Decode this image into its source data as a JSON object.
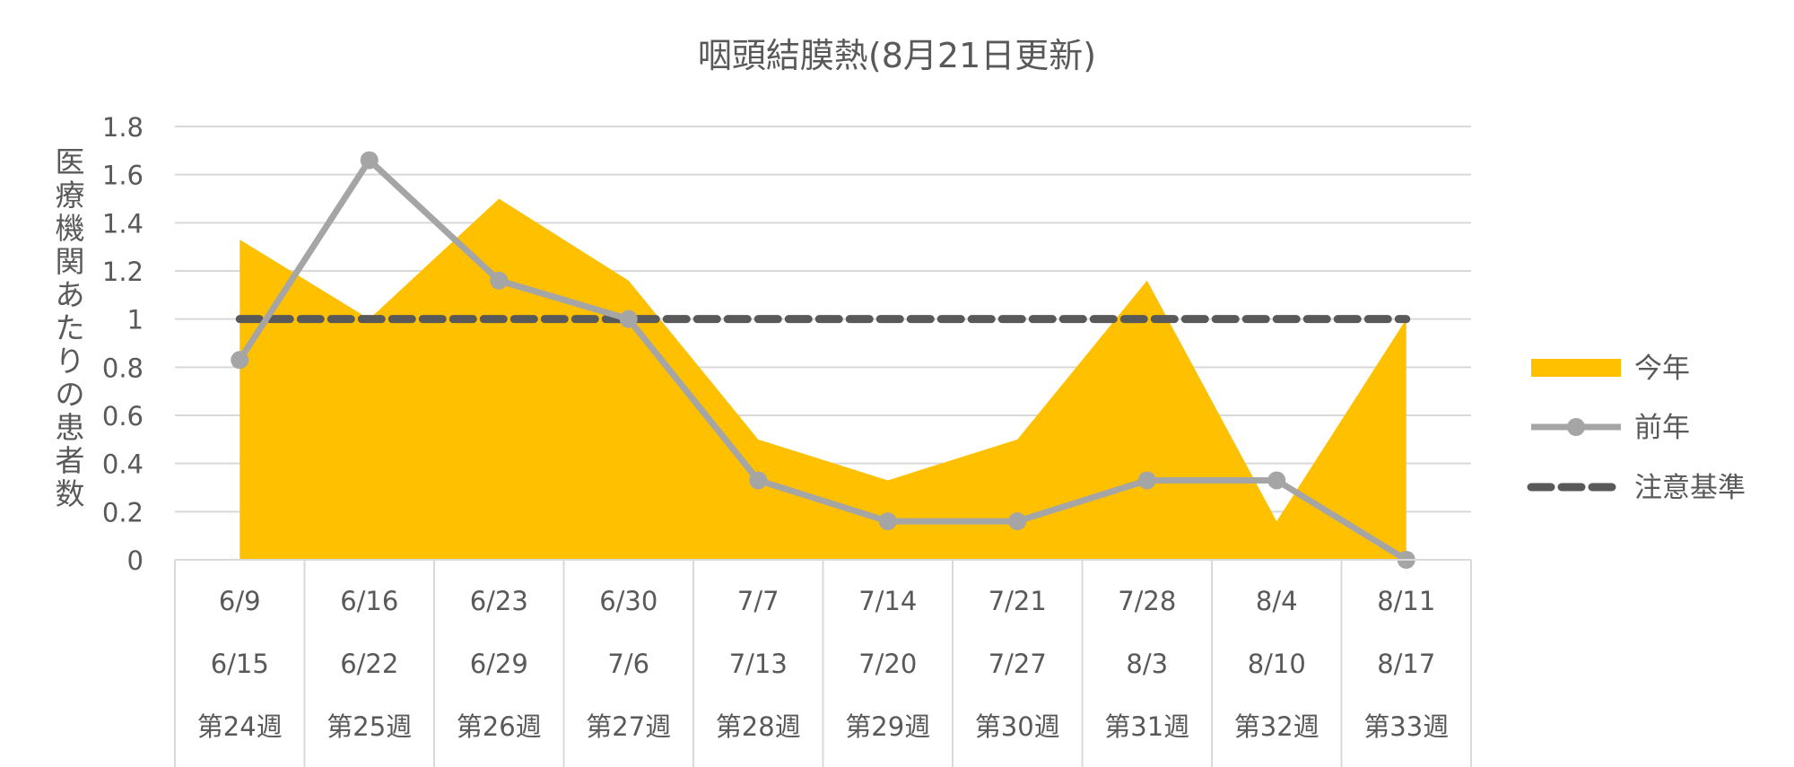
{
  "chart_data": {
    "type": "area",
    "title": "咽頭結膜熱(8月21日更新)",
    "ylabel": "医療機関あたりの患者数",
    "xlabel": "",
    "ylim": [
      0,
      1.8
    ],
    "yticks": [
      "0",
      "0.2",
      "0.4",
      "0.6",
      "0.8",
      "1",
      "1.2",
      "1.4",
      "1.6",
      "1.8"
    ],
    "ytick_values": [
      0,
      0.2,
      0.4,
      0.6,
      0.8,
      1,
      1.2,
      1.4,
      1.6,
      1.8
    ],
    "grid": true,
    "legend_position": "right",
    "categories": [
      {
        "start": "6/9",
        "end": "6/15",
        "week": "第24週"
      },
      {
        "start": "6/16",
        "end": "6/22",
        "week": "第25週"
      },
      {
        "start": "6/23",
        "end": "6/29",
        "week": "第26週"
      },
      {
        "start": "6/30",
        "end": "7/6",
        "week": "第27週"
      },
      {
        "start": "7/7",
        "end": "7/13",
        "week": "第28週"
      },
      {
        "start": "7/14",
        "end": "7/20",
        "week": "第29週"
      },
      {
        "start": "7/21",
        "end": "7/27",
        "week": "第30週"
      },
      {
        "start": "7/28",
        "end": "8/3",
        "week": "第31週"
      },
      {
        "start": "8/4",
        "end": "8/10",
        "week": "第32週"
      },
      {
        "start": "8/11",
        "end": "8/17",
        "week": "第33週"
      }
    ],
    "series": [
      {
        "name": "今年",
        "kind": "area",
        "color": "#FFC000",
        "values": [
          1.33,
          1.0,
          1.5,
          1.16,
          0.5,
          0.33,
          0.5,
          1.16,
          0.16,
          1.0
        ]
      },
      {
        "name": "前年",
        "kind": "line-marker",
        "color": "#A5A5A5",
        "values": [
          0.83,
          1.66,
          1.16,
          1.0,
          0.33,
          0.16,
          0.16,
          0.33,
          0.33,
          0.0
        ]
      },
      {
        "name": "注意基準",
        "kind": "dashed-line",
        "color": "#595959",
        "values": [
          1,
          1,
          1,
          1,
          1,
          1,
          1,
          1,
          1,
          1
        ]
      }
    ]
  }
}
